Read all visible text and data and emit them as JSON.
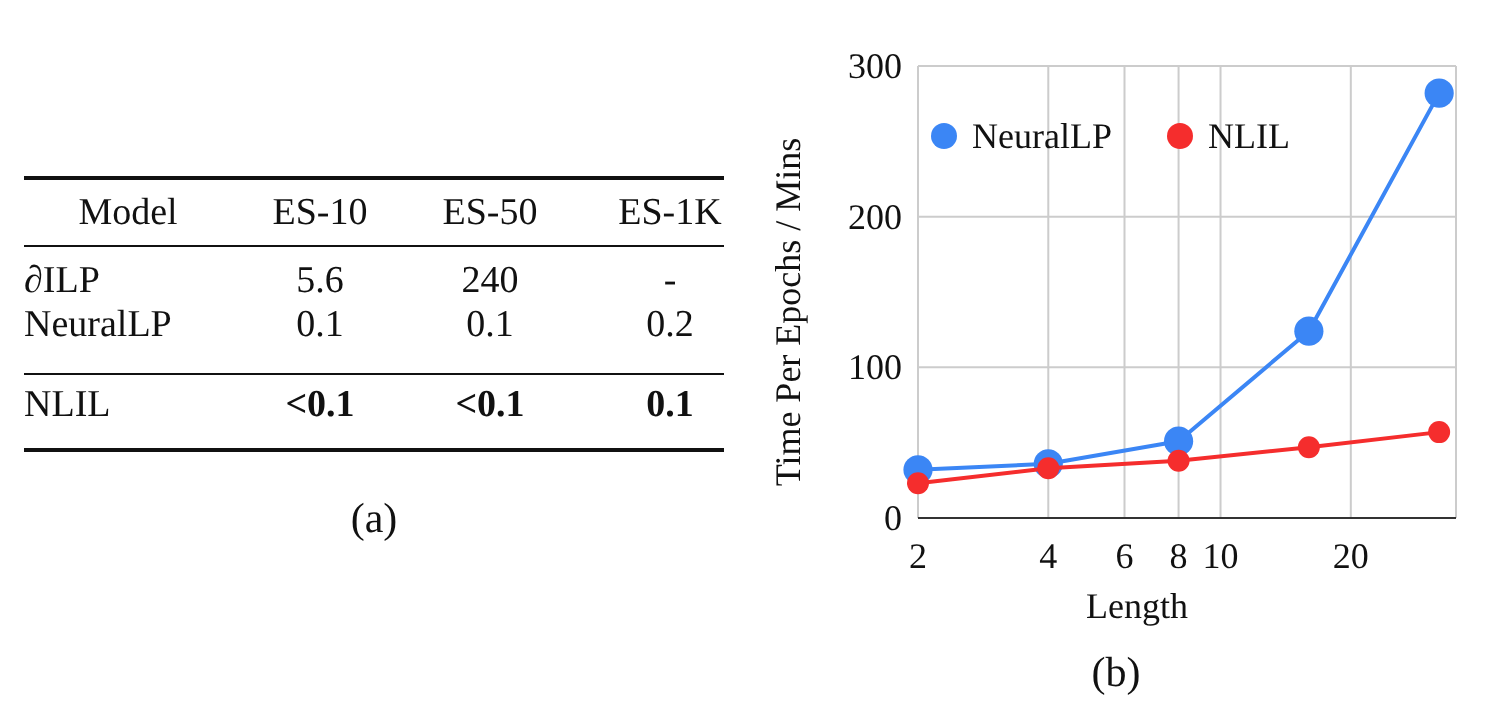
{
  "chart_data": [
    {
      "type": "other",
      "ylabel": "Model",
      "categories": [
        "ES-10",
        "ES-50",
        "ES-1K"
      ],
      "y_categories": [
        "∂ILP",
        "NeuralLP",
        "NLIL"
      ],
      "cell_labels": [
        [
          "5.6",
          "240",
          "-"
        ],
        [
          "0.1",
          "0.1",
          "0.2"
        ],
        [
          "<0.1",
          "<0.1",
          "0.1"
        ]
      ],
      "annotations": [
        "(a)"
      ]
    },
    {
      "type": "line",
      "xlabel": "Length",
      "ylabel": "Time Per Epochs / Mins",
      "log": "x",
      "x": [
        2,
        4,
        8,
        16,
        32
      ],
      "xlim": [
        2,
        35
      ],
      "xticks": [
        2,
        4,
        6,
        8,
        10,
        20
      ],
      "ylim": [
        0,
        300
      ],
      "yticks": [
        0,
        100,
        200,
        300
      ],
      "grid": true,
      "legend": "top left",
      "marker": "circle",
      "line_style": "solid",
      "annotations": [
        "(b)"
      ],
      "series": [
        {
          "name": "NeuralLP",
          "color": "#3b86f5",
          "values": [
            32,
            36,
            51,
            124,
            282
          ]
        },
        {
          "name": "NLIL",
          "color": "#f52d2d",
          "values": [
            23,
            33,
            38,
            47,
            57
          ]
        }
      ]
    }
  ]
}
